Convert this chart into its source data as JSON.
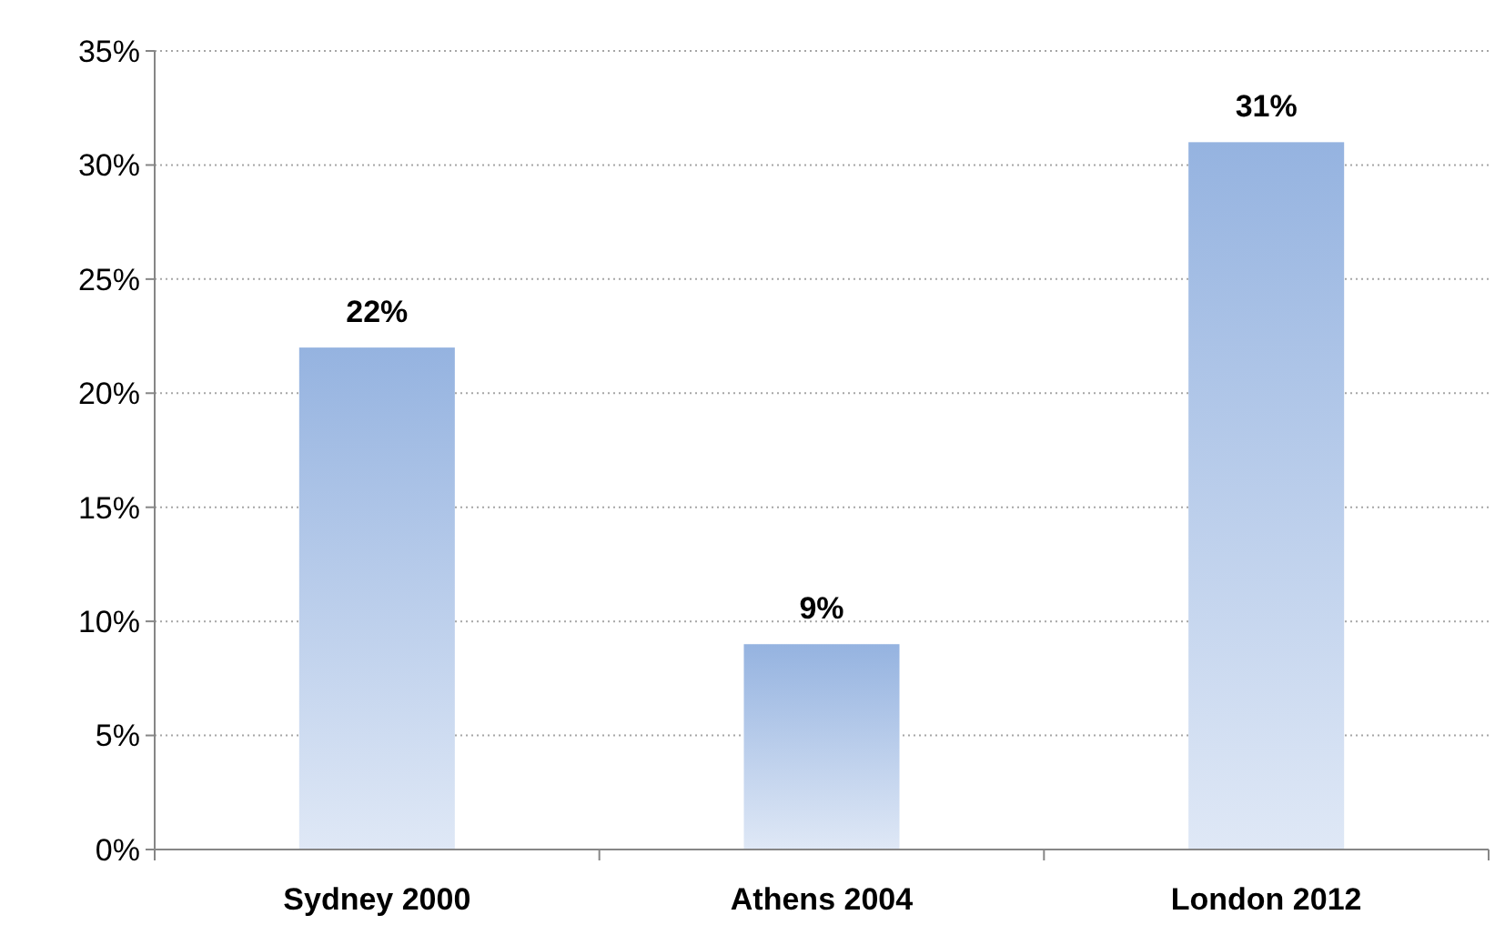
{
  "chart_data": {
    "type": "bar",
    "categories": [
      "Sydney 2000",
      "Athens 2004",
      "London 2012"
    ],
    "values": [
      22,
      9,
      31
    ],
    "value_labels": [
      "22%",
      "9%",
      "31%"
    ],
    "color": "#95b3e0",
    "ylim": [
      0,
      35
    ],
    "yticks": [
      {
        "value": 0,
        "label": "0%"
      },
      {
        "value": 5,
        "label": "5%"
      },
      {
        "value": 10,
        "label": "10%"
      },
      {
        "value": 15,
        "label": "15%"
      },
      {
        "value": 20,
        "label": "20%"
      },
      {
        "value": 25,
        "label": "25%"
      },
      {
        "value": 30,
        "label": "30%"
      },
      {
        "value": 35,
        "label": "35%"
      }
    ],
    "grid": "y"
  }
}
